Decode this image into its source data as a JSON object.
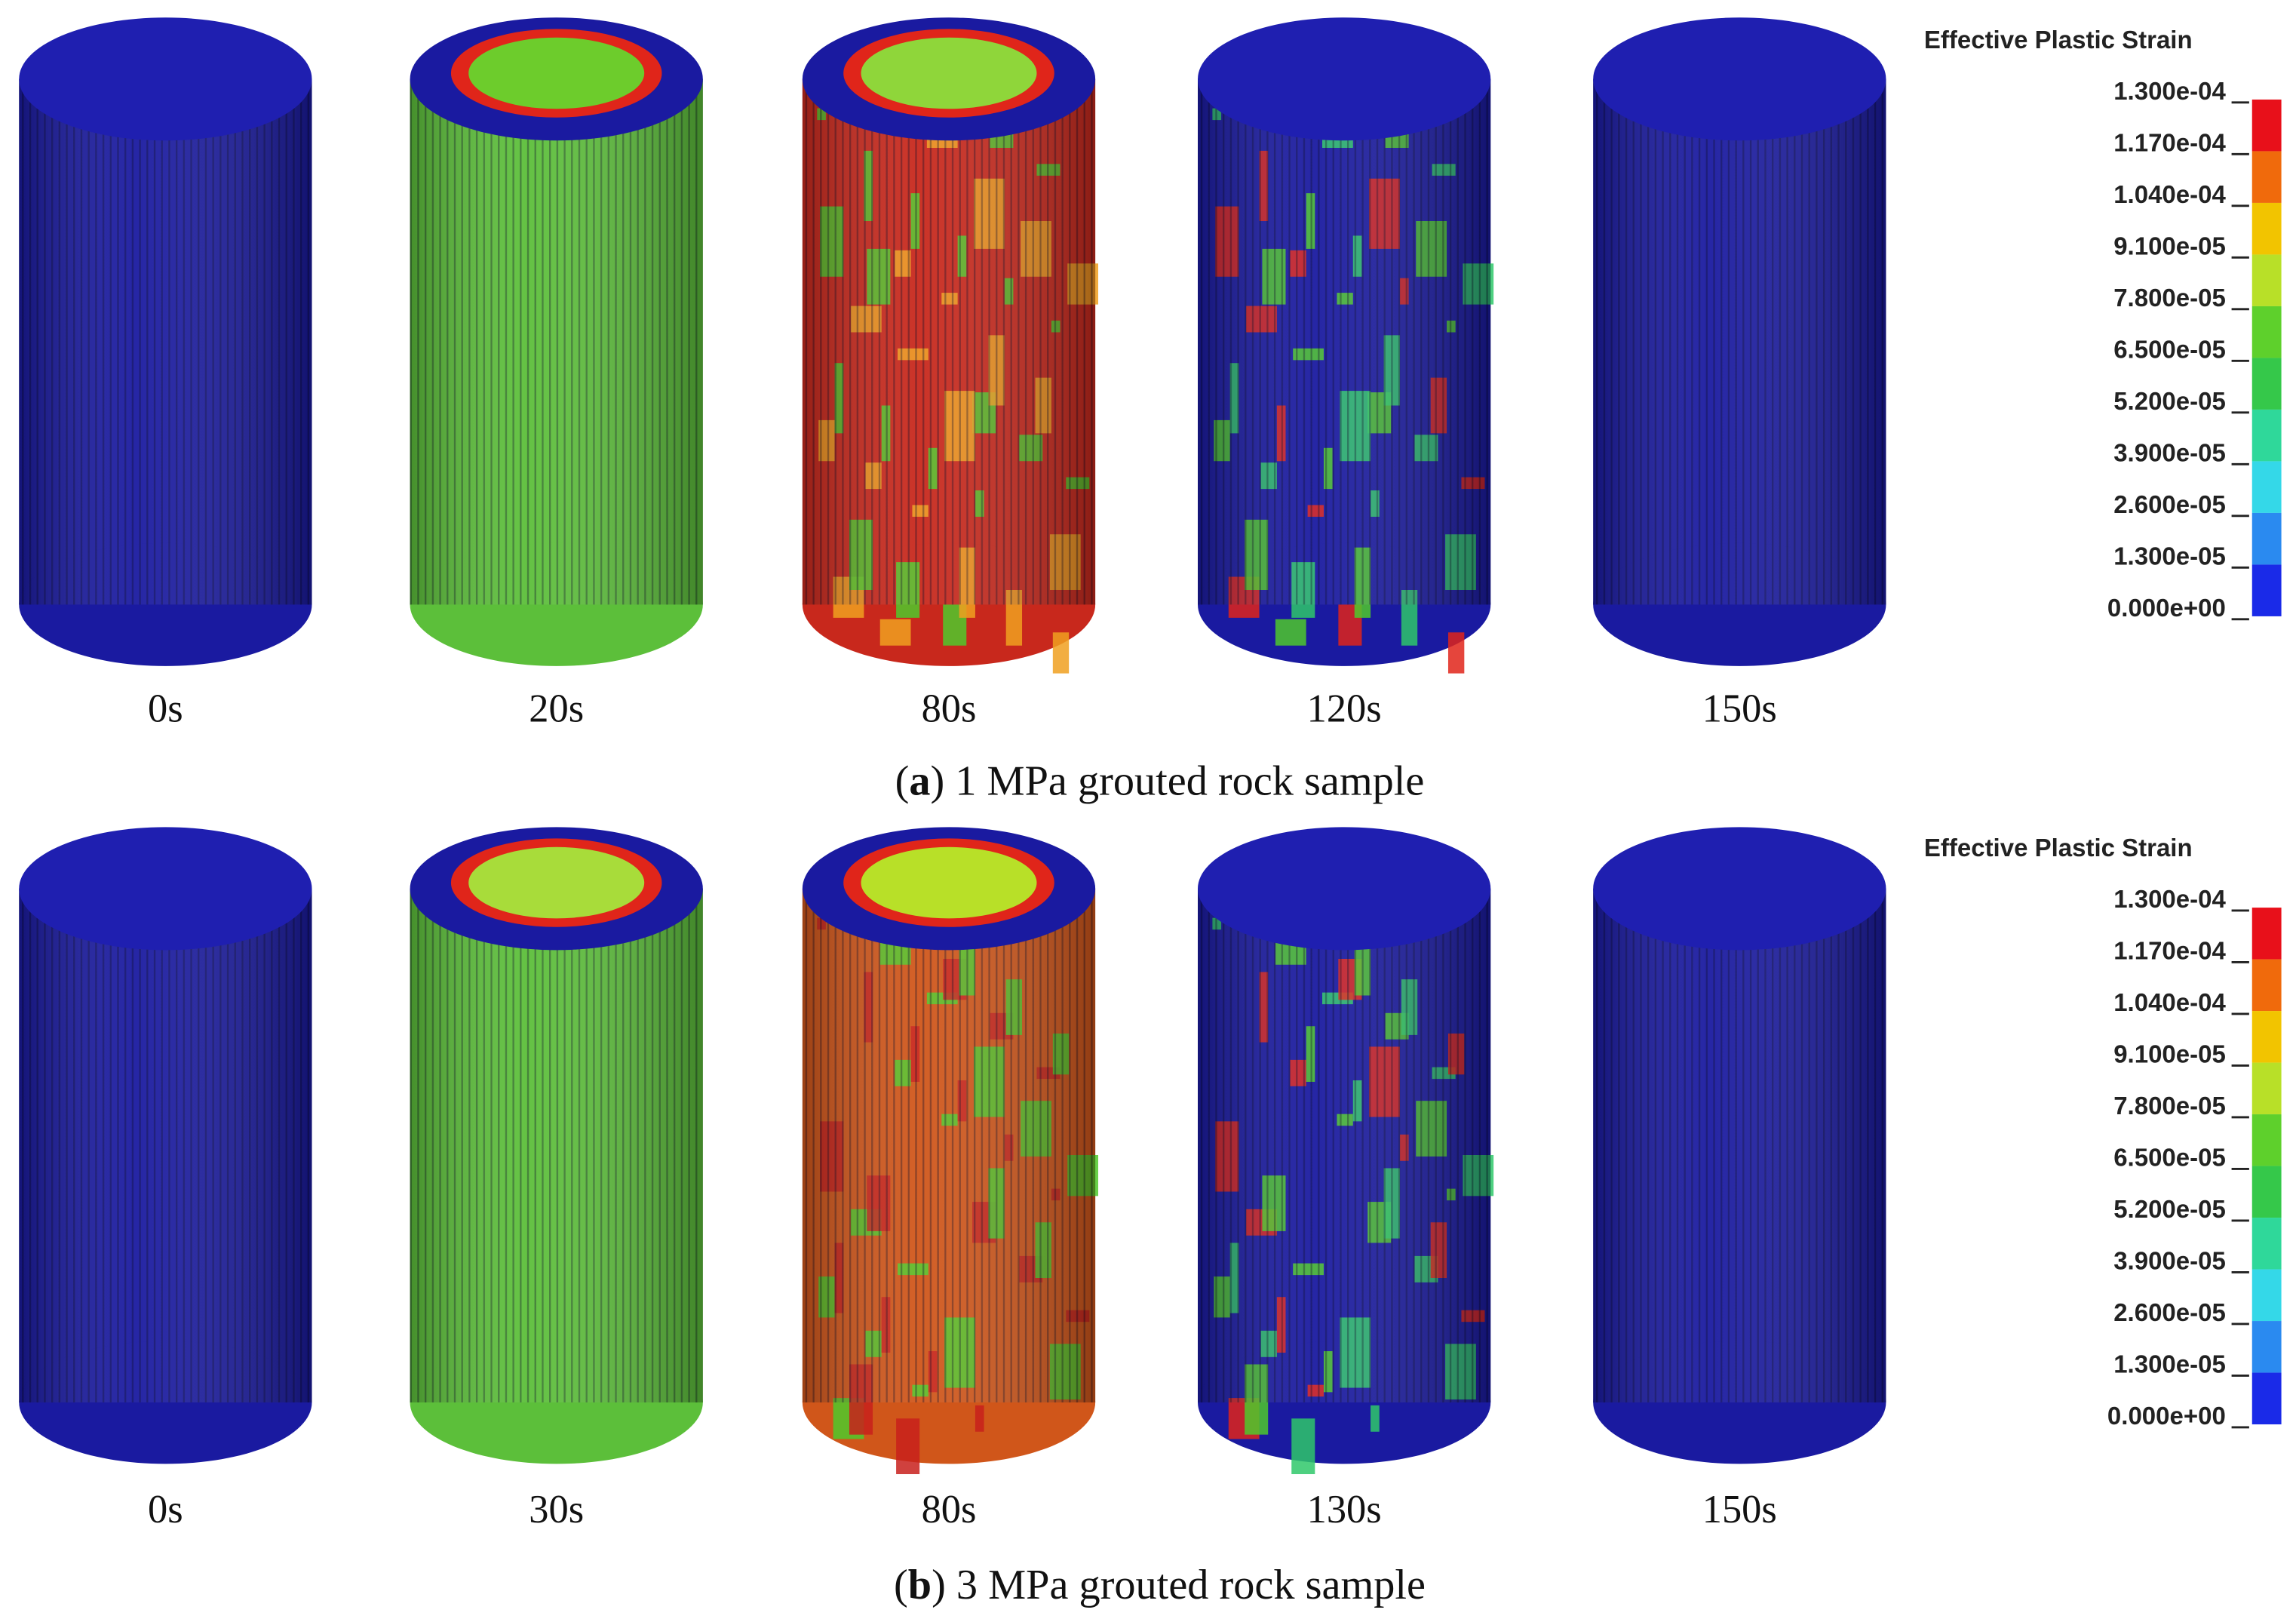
{
  "panels": [
    {
      "times": [
        "0s",
        "20s",
        "80s",
        "120s",
        "150s"
      ],
      "caption": {
        "open": "(",
        "label": "a",
        "text": ") 1 MPa grouted rock sample"
      },
      "legend": {
        "title": "Effective Plastic Strain",
        "ticks": [
          "1.300e-04",
          "1.170e-04",
          "1.040e-04",
          "9.100e-05",
          "7.800e-05",
          "6.500e-05",
          "5.200e-05",
          "3.900e-05",
          "2.600e-05",
          "1.300e-05",
          "0.000e+00"
        ]
      }
    },
    {
      "times": [
        "0s",
        "30s",
        "80s",
        "130s",
        "150s"
      ],
      "caption": {
        "open": "(",
        "label": "b",
        "text": ") 3 MPa grouted rock sample"
      },
      "legend": {
        "title": "Effective Plastic Strain",
        "ticks": [
          "1.300e-04",
          "1.170e-04",
          "1.040e-04",
          "9.100e-05",
          "7.800e-05",
          "6.500e-05",
          "5.200e-05",
          "3.900e-05",
          "2.600e-05",
          "1.300e-05",
          "0.000e+00"
        ]
      }
    }
  ]
}
